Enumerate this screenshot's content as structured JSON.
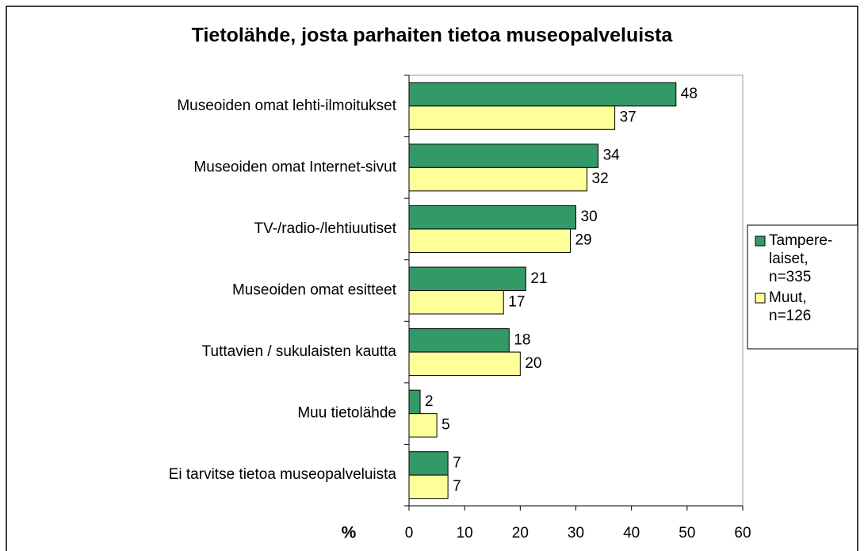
{
  "chart_data": {
    "type": "bar",
    "orientation": "horizontal",
    "title": "Tietolähde, josta parhaiten tietoa museopalveluista",
    "x_label": "%",
    "categories": [
      "Museoiden omat lehti-ilmoitukset",
      "Museoiden omat Internet-sivut",
      "TV-/radio-/lehtiuutiset",
      "Museoiden omat esitteet",
      "Tuttavien / sukulaisten kautta",
      "Muu tietolähde",
      "Ei tarvitse tietoa museopalveluista"
    ],
    "series": [
      {
        "name": "Tampere-laiset, n=335",
        "color": "#339966",
        "values": [
          48,
          34,
          30,
          21,
          18,
          2,
          7
        ]
      },
      {
        "name": "Muut, n=126",
        "color": "#ffff99",
        "values": [
          37,
          32,
          29,
          17,
          20,
          5,
          7
        ]
      }
    ],
    "xlim": [
      0,
      60
    ],
    "xticks": [
      0,
      10,
      20,
      30,
      40,
      50,
      60
    ],
    "grid": false,
    "legend": "right"
  }
}
